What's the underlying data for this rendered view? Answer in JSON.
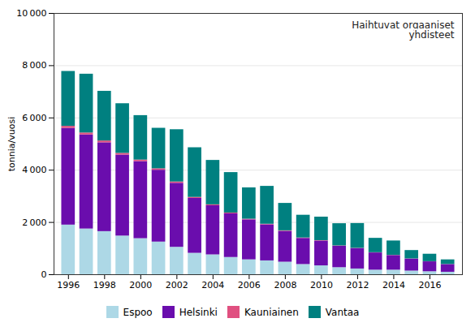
{
  "chart_data": {
    "type": "bar",
    "stacked": true,
    "x": [
      1996,
      1997,
      1998,
      1999,
      2000,
      2001,
      2002,
      2003,
      2004,
      2005,
      2006,
      2007,
      2008,
      2009,
      2010,
      2011,
      2012,
      2013,
      2014,
      2015,
      2016,
      2017
    ],
    "series": [
      {
        "name": "Espoo",
        "color": "#add8e6",
        "values": [
          1900,
          1750,
          1650,
          1480,
          1380,
          1250,
          1050,
          820,
          760,
          660,
          570,
          530,
          480,
          390,
          340,
          270,
          220,
          175,
          175,
          140,
          115,
          95
        ]
      },
      {
        "name": "Helsinki",
        "color": "#6a0dad",
        "values": [
          3700,
          3600,
          3400,
          3100,
          2950,
          2750,
          2450,
          2100,
          1880,
          1670,
          1530,
          1380,
          1180,
          1000,
          950,
          820,
          780,
          660,
          560,
          460,
          380,
          295
        ]
      },
      {
        "name": "Kauniainen",
        "color": "#e05080",
        "values": [
          80,
          75,
          70,
          65,
          60,
          55,
          50,
          40,
          35,
          30,
          25,
          22,
          20,
          17,
          15,
          13,
          10,
          8,
          7,
          6,
          5,
          4
        ]
      },
      {
        "name": "Vantaa",
        "color": "#008080",
        "values": [
          2100,
          2250,
          1900,
          1900,
          1700,
          1550,
          2000,
          1900,
          1700,
          1550,
          1200,
          1450,
          1050,
          870,
          900,
          850,
          950,
          550,
          550,
          320,
          285,
          175
        ]
      }
    ],
    "ylabel": "tonnia/vuosi",
    "annotations": [
      "Haihtuvat orgaaniset\nyhdisteet"
    ],
    "ylim": [
      0,
      10000
    ],
    "yticks": [
      0,
      {
        "value": 2000,
        "label": "2 000"
      },
      {
        "value": 4000,
        "label": "4 000"
      },
      {
        "value": 6000,
        "label": "6 000"
      },
      {
        "value": 8000,
        "label": "8 000"
      },
      {
        "value": 10000,
        "label": "10 000"
      }
    ],
    "xlim": [
      1995.2,
      2017.8
    ],
    "xticks": [
      1996,
      1998,
      2000,
      2002,
      2004,
      2006,
      2008,
      2010,
      2012,
      2014,
      2016
    ],
    "grid": true,
    "legend": "bottom"
  }
}
